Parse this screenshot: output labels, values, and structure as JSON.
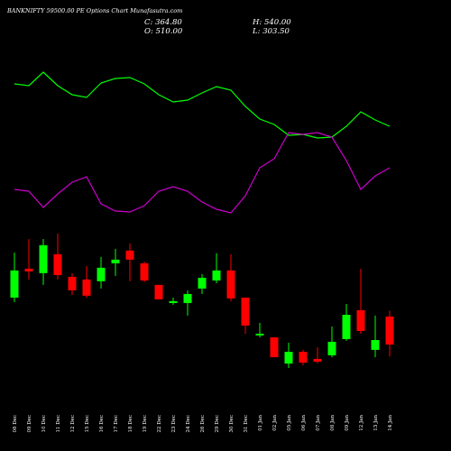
{
  "chart_data": {
    "type": "candlestick",
    "title": "BANKNIFTY 59500.00 PE Options Chart Munafasutra.com",
    "info": [
      "C: 364.80",
      "H: 540.00",
      "O: 510.00",
      "L: 303.50"
    ],
    "categories": [
      "08 Dec",
      "09 Dec",
      "10 Dec",
      "11 Dec",
      "12 Dec",
      "15 Dec",
      "16 Dec",
      "17 Dec",
      "18 Dec",
      "19 Dec",
      "22 Dec",
      "23 Dec",
      "24 Dec",
      "26 Dec",
      "29 Dec",
      "30 Dec",
      "31 Dec",
      "01 Jan",
      "02 Jan",
      "05 Jan",
      "06 Jan",
      "07 Jan",
      "08 Jan",
      "09 Jan",
      "12 Jan",
      "13 Jan",
      "14 Jan"
    ],
    "open": [
      608,
      758,
      735,
      833,
      716,
      702,
      693,
      786,
      852,
      786,
      674,
      580,
      580,
      655,
      697,
      749,
      608,
      412,
      402,
      266,
      327,
      290,
      309,
      393,
      543,
      337,
      510
    ],
    "high": [
      842,
      912,
      912,
      940,
      735,
      772,
      819,
      861,
      889,
      795,
      674,
      608,
      646,
      730,
      838,
      833,
      608,
      477,
      402,
      374,
      337,
      351,
      458,
      575,
      758,
      515,
      540
    ],
    "low": [
      585,
      702,
      674,
      702,
      622,
      608,
      655,
      721,
      693,
      688,
      599,
      571,
      515,
      627,
      683,
      590,
      421,
      402,
      299,
      243,
      257,
      267,
      299,
      384,
      421,
      299,
      303.5
    ],
    "close": [
      749,
      744,
      880,
      725,
      646,
      618,
      763,
      805,
      805,
      697,
      599,
      590,
      627,
      711,
      749,
      604,
      463,
      421,
      299,
      327,
      271,
      276,
      379,
      519,
      435,
      388,
      364.8
    ],
    "up_color": "#00ff00",
    "down_color": "#ff0000",
    "lines": [
      {
        "color": "#00ff00",
        "values": [
          157,
          155,
          170,
          155,
          145,
          142,
          158,
          163,
          164,
          157,
          145,
          137,
          139,
          147,
          154,
          150,
          132,
          118,
          112,
          100,
          101,
          97,
          98,
          110,
          126,
          117,
          110
        ]
      },
      {
        "color": "#cc00cc",
        "values": [
          40,
          38,
          20,
          35,
          48,
          54,
          24,
          16,
          15,
          22,
          38,
          43,
          38,
          26,
          18,
          14,
          33,
          64,
          74,
          103,
          101,
          103,
          98,
          72,
          40,
          55,
          64
        ]
      }
    ]
  }
}
